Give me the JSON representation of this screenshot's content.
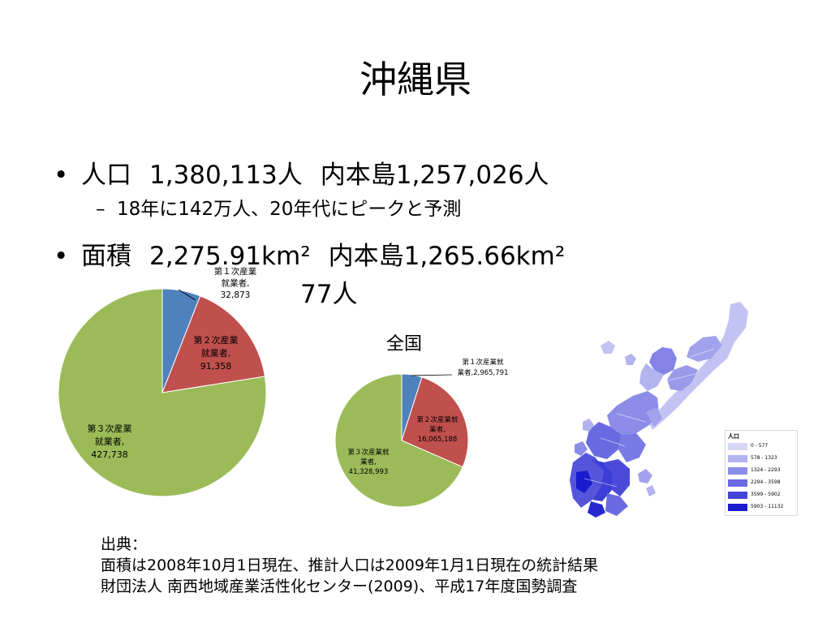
{
  "title": "沖縄県",
  "bullets": {
    "marker": "•",
    "population_label": "人口",
    "population_value": "1,380,113人",
    "population_main": "内本島1,257,026人",
    "sub_dash": "–",
    "sub_text": "18年に142万人、20年代にピークと予測",
    "area_label": "面積",
    "area_value": "2,275.91km²",
    "area_main": "内本島1,265.66km²",
    "third_partial": "77人"
  },
  "okinawa_pie": {
    "labels": [
      [
        "第１次産業",
        "就業者,",
        "32,873"
      ],
      [
        "第２次産業",
        "就業者,",
        "91,358"
      ],
      [
        "第３次産業",
        "就業者,",
        "427,738"
      ]
    ]
  },
  "national_title": "全国",
  "national_pie": {
    "labels": [
      [
        "第１次産業就",
        "業者,2,965,791"
      ],
      [
        "第２次産業就",
        "業者,",
        "16,065,188"
      ],
      [
        "第３次産業就",
        "業者,",
        "41,328,993"
      ]
    ]
  },
  "chart_data": [
    {
      "type": "pie",
      "categories": [
        "第１次産業就業者",
        "第２次産業就業者",
        "第３次産業就業者"
      ],
      "values": [
        32873,
        91358,
        427738
      ],
      "colors": [
        "#4f81bd",
        "#c0504d",
        "#9bbb59"
      ]
    },
    {
      "type": "pie",
      "title": "全国",
      "categories": [
        "第１次産業就業者",
        "第２次産業就業者",
        "第３次産業就業者"
      ],
      "values": [
        2965791,
        16065188,
        41328993
      ],
      "colors": [
        "#4f81bd",
        "#c0504d",
        "#9bbb59"
      ]
    }
  ],
  "map_legend": {
    "title": "人口",
    "items": [
      {
        "range": "0 - 577",
        "color": "#d7d7f7"
      },
      {
        "range": "578 - 1323",
        "color": "#b3b3f0"
      },
      {
        "range": "1324 - 2293",
        "color": "#8c8ce9"
      },
      {
        "range": "2294 - 3598",
        "color": "#6a6ae2"
      },
      {
        "range": "3599 - 5902",
        "color": "#4545d9"
      },
      {
        "range": "5903 - 11132",
        "color": "#1a1acf"
      }
    ]
  },
  "source": {
    "heading": "出典：",
    "line1": "面積は2008年10月1日現在、推計人口は2009年1月1日現在の統計結果",
    "line2": "財団法人 南西地域産業活性化センター(2009)、平成17年度国勢調査"
  }
}
